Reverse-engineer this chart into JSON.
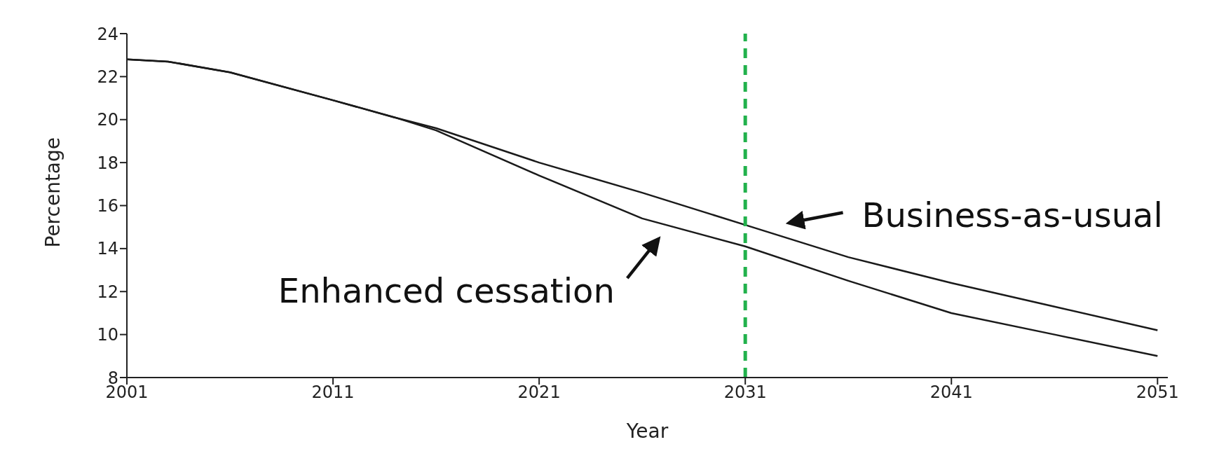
{
  "chart_data": {
    "type": "line",
    "xlabel": "Year",
    "ylabel": "Percentage",
    "xlim": [
      2001,
      2051.5
    ],
    "xticks": [
      2001,
      2011,
      2021,
      2031,
      2041,
      2051
    ],
    "ylim": [
      8,
      24
    ],
    "yticks": [
      8,
      10,
      12,
      14,
      16,
      18,
      20,
      22,
      24
    ],
    "grid": false,
    "legend": false,
    "marker": "none",
    "line_style": "solid",
    "series": [
      {
        "color": "#1a1a1a",
        "x": [
          2001,
          2003,
          2006,
          2011,
          2014,
          2016,
          2021,
          2026,
          2031,
          2036,
          2041,
          2046,
          2051
        ],
        "values": [
          22.8,
          22.7,
          22.2,
          20.9,
          20.1,
          19.6,
          18.0,
          16.6,
          15.1,
          13.6,
          12.4,
          11.3,
          10.2
        ]
      },
      {
        "color": "#1a1a1a",
        "x": [
          2001,
          2003,
          2006,
          2011,
          2014,
          2016,
          2021,
          2026,
          2031,
          2036,
          2041,
          2046,
          2051
        ],
        "values": [
          22.8,
          22.7,
          22.2,
          20.9,
          20.1,
          19.5,
          17.4,
          15.4,
          14.1,
          12.5,
          11.0,
          10.0,
          9.0
        ]
      }
    ],
    "ref_lines": [
      {
        "axis": "x",
        "value": 2031,
        "color": "#22b14c",
        "line_style": "dashed"
      }
    ],
    "annotations": [
      "Business-as-usual",
      "Enhanced cessation"
    ]
  }
}
